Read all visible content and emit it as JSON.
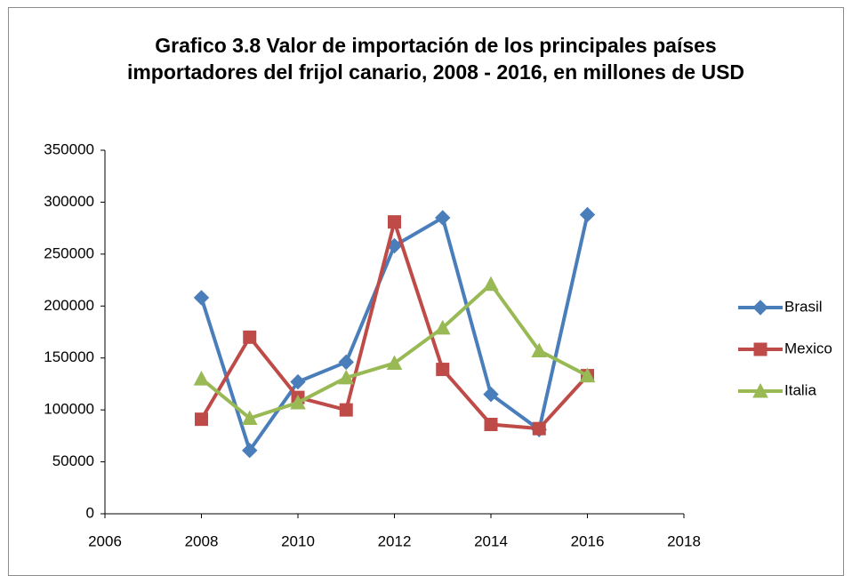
{
  "chart_data": {
    "type": "line",
    "title": "Grafico 3.8 Valor de importación de los principales países importadores del frijol canario, 2008 - 2016, en millones de USD",
    "x": [
      2008,
      2009,
      2010,
      2011,
      2012,
      2013,
      2014,
      2015,
      2016
    ],
    "series": [
      {
        "name": "Brasil",
        "color": "#4a7ebb",
        "marker": "diamond",
        "values": [
          208000,
          61000,
          127000,
          146000,
          258000,
          285000,
          115000,
          81000,
          288000
        ]
      },
      {
        "name": "Mexico",
        "color": "#be4b48",
        "marker": "square",
        "values": [
          91000,
          170000,
          112000,
          100000,
          281000,
          139000,
          86000,
          82000,
          133000
        ]
      },
      {
        "name": "Italia",
        "color": "#98b954",
        "marker": "triangle",
        "values": [
          130000,
          92000,
          107000,
          131000,
          145000,
          179000,
          221000,
          157000,
          133000
        ]
      }
    ],
    "xlim": [
      2006,
      2018
    ],
    "xticks": [
      2006,
      2008,
      2010,
      2012,
      2014,
      2016,
      2018
    ],
    "ylim": [
      0,
      350000
    ],
    "yticks": [
      0,
      50000,
      100000,
      150000,
      200000,
      250000,
      300000,
      350000
    ],
    "grid": false,
    "legend": "right"
  }
}
